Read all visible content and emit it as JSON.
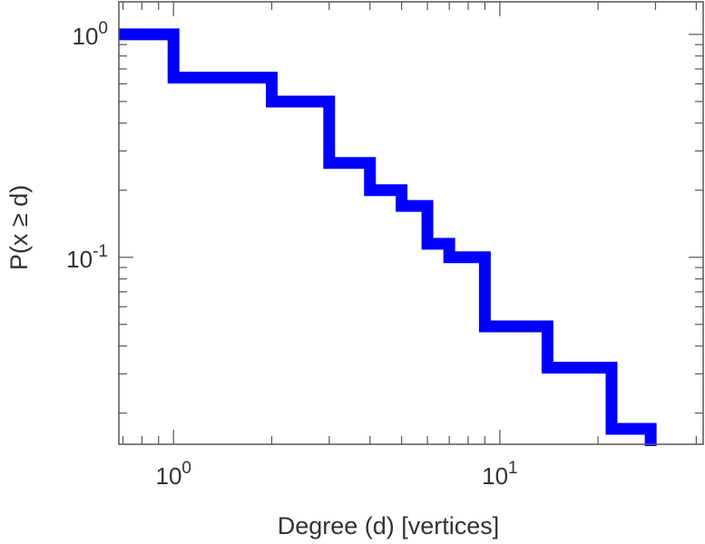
{
  "chart_data": {
    "type": "line",
    "step": true,
    "title": "",
    "xlabel": "Degree (d) [vertices]",
    "ylabel": "P(x ≥ d)",
    "xscale": "log",
    "yscale": "log",
    "xlim": [
      0.68,
      42
    ],
    "ylim": [
      0.0145,
      1.4
    ],
    "grid": false,
    "legend": "none",
    "colors": {
      "line": "#0000ff",
      "axis": "#555555",
      "text": "#333333"
    },
    "x_ticks": [
      {
        "value": 1,
        "base": "10",
        "exp": "0"
      },
      {
        "value": 10,
        "base": "10",
        "exp": "1"
      }
    ],
    "y_ticks": [
      {
        "value": 1,
        "base": "10",
        "exp": "0"
      },
      {
        "value": 0.1,
        "base": "10",
        "exp": "-1"
      }
    ],
    "series": [
      {
        "x": [
          0.68,
          1,
          2,
          3,
          4,
          5,
          6,
          7,
          9,
          14,
          22,
          29
        ],
        "y": [
          1.0,
          0.64,
          0.5,
          0.265,
          0.2,
          0.17,
          0.115,
          0.1,
          0.049,
          0.032,
          0.017,
          0.0145
        ]
      }
    ]
  }
}
